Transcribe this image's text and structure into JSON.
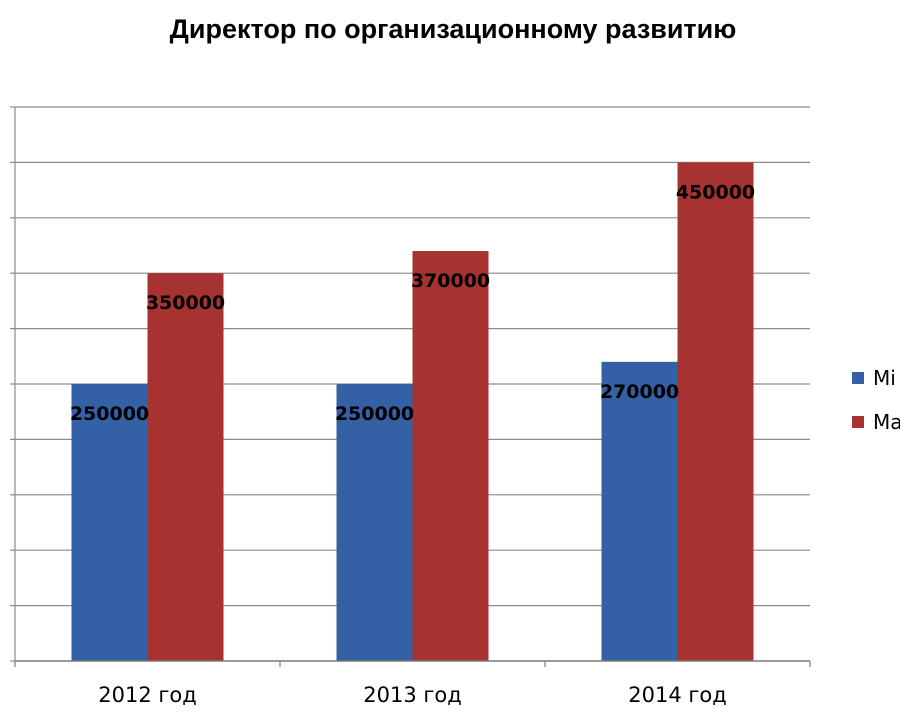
{
  "chart_data": {
    "type": "bar",
    "title": "Директор по организационному развитию",
    "categories": [
      "2012 год",
      "2013 год",
      "2014 год"
    ],
    "series": [
      {
        "name": "Mi",
        "color": "#3461A6",
        "values": [
          250000,
          250000,
          270000
        ]
      },
      {
        "name": "Ma",
        "color": "#A63331",
        "values": [
          350000,
          370000,
          450000
        ]
      }
    ],
    "data_labels": [
      [
        "250000",
        "250000",
        "270000"
      ],
      [
        "350000",
        "370000",
        "450000"
      ]
    ],
    "ylim": [
      0,
      500000
    ],
    "grid": true,
    "legend": "right",
    "xlabel": "",
    "ylabel": ""
  }
}
